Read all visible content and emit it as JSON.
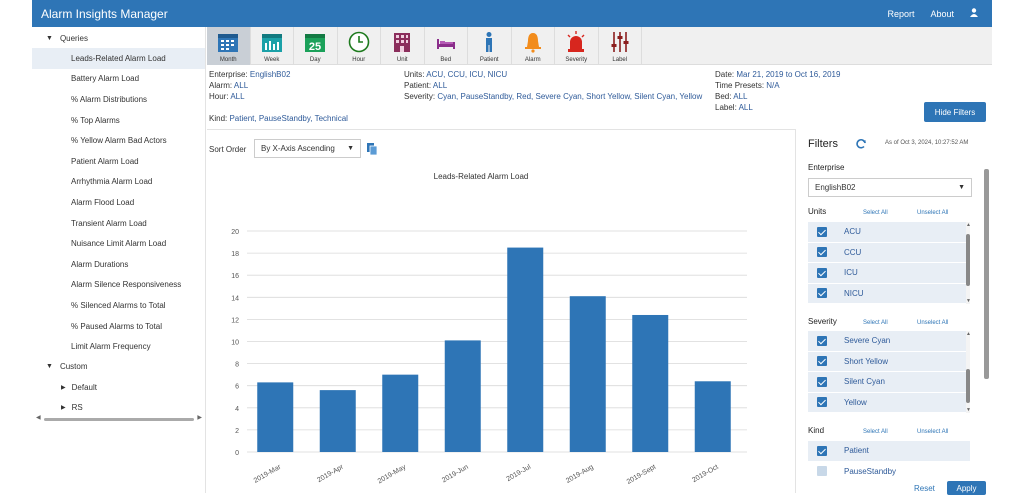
{
  "app": {
    "title": "Alarm Insights Manager",
    "nav": [
      "Report",
      "About"
    ],
    "user_icon": "user-icon"
  },
  "sidebar": {
    "queries_label": "Queries",
    "queries": [
      "Leads-Related Alarm Load",
      "Battery Alarm Load",
      "% Alarm Distributions",
      "% Top Alarms",
      "% Yellow Alarm Bad Actors",
      "Patient Alarm Load",
      "Arrhythmia Alarm Load",
      "Alarm Flood Load",
      "Transient Alarm Load",
      "Nuisance Limit Alarm Load",
      "Alarm Durations",
      "Alarm Silence Responsiveness",
      "% Silenced Alarms to Total",
      "% Paused Alarms to Total",
      "Limit Alarm Frequency"
    ],
    "custom_label": "Custom",
    "custom": [
      "Default",
      "RS"
    ]
  },
  "toolbar": [
    {
      "label": "Month",
      "icon": "calendar-month-icon",
      "active": true
    },
    {
      "label": "Week",
      "icon": "calendar-week-icon"
    },
    {
      "label": "Day",
      "icon": "calendar-day-icon",
      "day": "25"
    },
    {
      "label": "Hour",
      "icon": "clock-icon"
    },
    {
      "label": "Unit",
      "icon": "building-icon"
    },
    {
      "label": "Bed",
      "icon": "bed-icon"
    },
    {
      "label": "Patient",
      "icon": "person-icon"
    },
    {
      "label": "Alarm",
      "icon": "bell-icon"
    },
    {
      "label": "Severity",
      "icon": "siren-icon"
    },
    {
      "label": "Label",
      "icon": "sliders-icon"
    }
  ],
  "criteria": {
    "enterprise": {
      "key": "Enterprise:",
      "value": "EnglishB02"
    },
    "alarm": {
      "key": "Alarm:",
      "value": "ALL"
    },
    "hour": {
      "key": "Hour:",
      "value": "ALL"
    },
    "kind": {
      "key": "Kind:",
      "value": "Patient, PauseStandby, Technical"
    },
    "units": {
      "key": "Units:",
      "value": "ACU, CCU, ICU, NICU"
    },
    "patient": {
      "key": "Patient:",
      "value": "ALL"
    },
    "severity": {
      "key": "Severity:",
      "value": "Cyan, PauseStandby, Red, Severe Cyan, Short Yellow, Silent Cyan, Yellow"
    },
    "date": {
      "key": "Date:",
      "value": "Mar 21, 2019 to Oct 16, 2019"
    },
    "time_presets": {
      "key": "Time Presets:",
      "value": "N/A"
    },
    "bed": {
      "key": "Bed:",
      "value": "ALL"
    },
    "label": {
      "key": "Label:",
      "value": "ALL"
    },
    "hide_filters": "Hide Filters"
  },
  "sort": {
    "label": "Sort Order",
    "value": "By X-Axis Ascending"
  },
  "chart_data": {
    "type": "bar",
    "title": "Leads-Related Alarm Load",
    "categories": [
      "2019-Mar",
      "2019-Apr",
      "2019-May",
      "2019-Jun",
      "2019-Jul",
      "2019-Aug",
      "2019-Sept",
      "2019-Oct"
    ],
    "values": [
      6.3,
      5.6,
      7.0,
      10.1,
      18.5,
      14.1,
      12.4,
      6.4
    ],
    "ylim": [
      0,
      20
    ],
    "yticks": [
      0,
      2,
      4,
      6,
      8,
      10,
      12,
      14,
      16,
      18,
      20
    ],
    "bar_color": "#2e75b6",
    "grid": true
  },
  "filters": {
    "title": "Filters",
    "as_of": "As of Oct 3, 2024, 10:27:52 AM",
    "enterprise_label": "Enterprise",
    "enterprise_value": "EnglishB02",
    "units_label": "Units",
    "select_all": "Select All",
    "unselect_all": "Unselect All",
    "units": [
      "ACU",
      "CCU",
      "ICU",
      "NICU"
    ],
    "severity_label": "Severity",
    "severity": [
      "Severe Cyan",
      "Short Yellow",
      "Silent Cyan",
      "Yellow"
    ],
    "kind_label": "Kind",
    "kind": [
      {
        "name": "Patient",
        "checked": true
      },
      {
        "name": "PauseStandby",
        "checked": false
      }
    ],
    "reset": "Reset",
    "apply": "Apply"
  },
  "colors": {
    "primary": "#2e75b6",
    "selected_row": "#e8eef5"
  }
}
